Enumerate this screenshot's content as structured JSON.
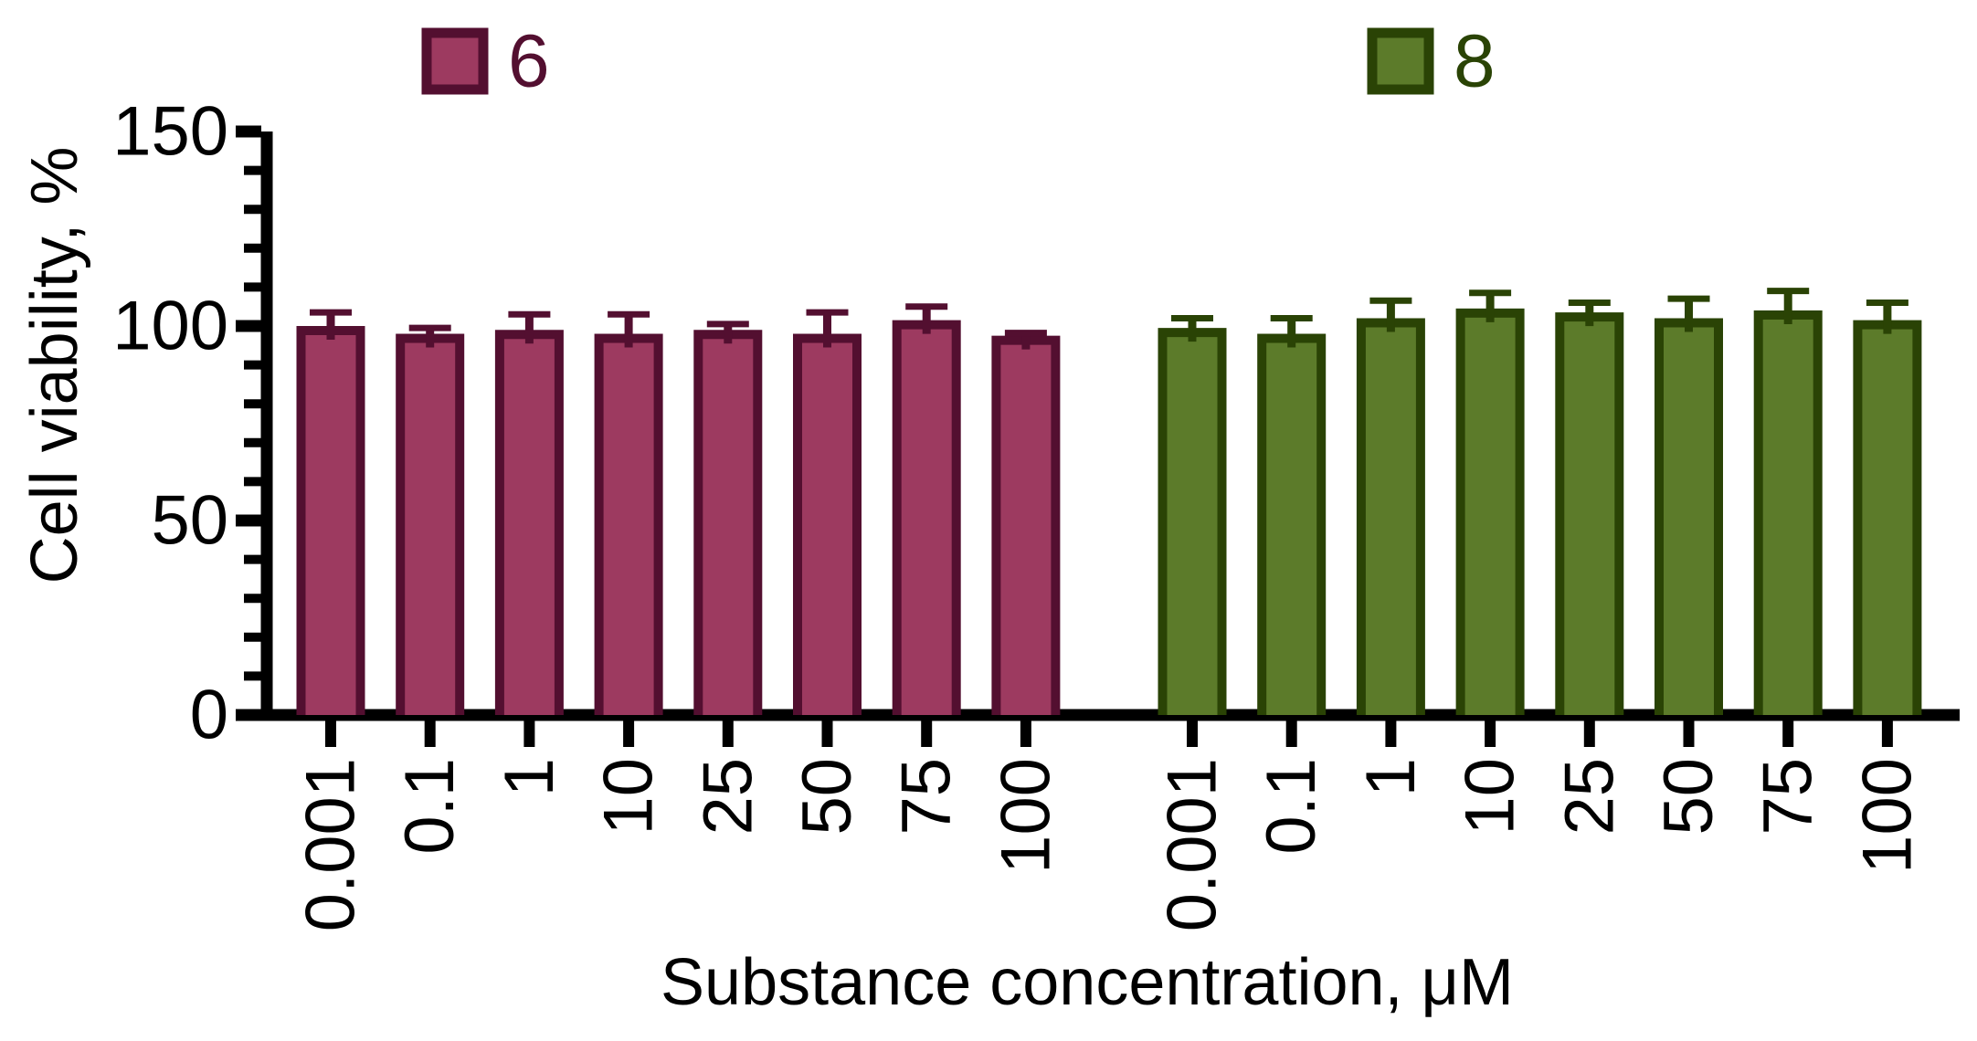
{
  "chart_data": {
    "type": "bar",
    "title": "",
    "xlabel": "Substance concentration, μM",
    "ylabel": "Cell viability, %",
    "ylim": [
      0,
      150
    ],
    "yticks": [
      0,
      50,
      100,
      150
    ],
    "minor_tick_step": 10,
    "grid": false,
    "legend_position": "top",
    "error_bars": "upper",
    "categories": [
      "0.001",
      "0.1",
      "1",
      "10",
      "25",
      "50",
      "75",
      "100"
    ],
    "series": [
      {
        "name": "6",
        "fill": "#9d3a60",
        "stroke": "#530f30",
        "values": [
          100,
          98,
          99,
          98,
          99,
          98,
          101.5,
          97.5
        ],
        "errors": [
          3.5,
          1.5,
          4,
          5,
          1.5,
          5.5,
          3.5,
          0.7
        ]
      },
      {
        "name": "8",
        "fill": "#5c7b2a",
        "stroke": "#2a4305",
        "values": [
          99.5,
          98,
          102,
          104.5,
          103.5,
          102,
          104,
          101.5
        ],
        "errors": [
          2.5,
          4,
          4.5,
          4,
          2.5,
          5,
          5,
          4.5
        ]
      }
    ]
  }
}
